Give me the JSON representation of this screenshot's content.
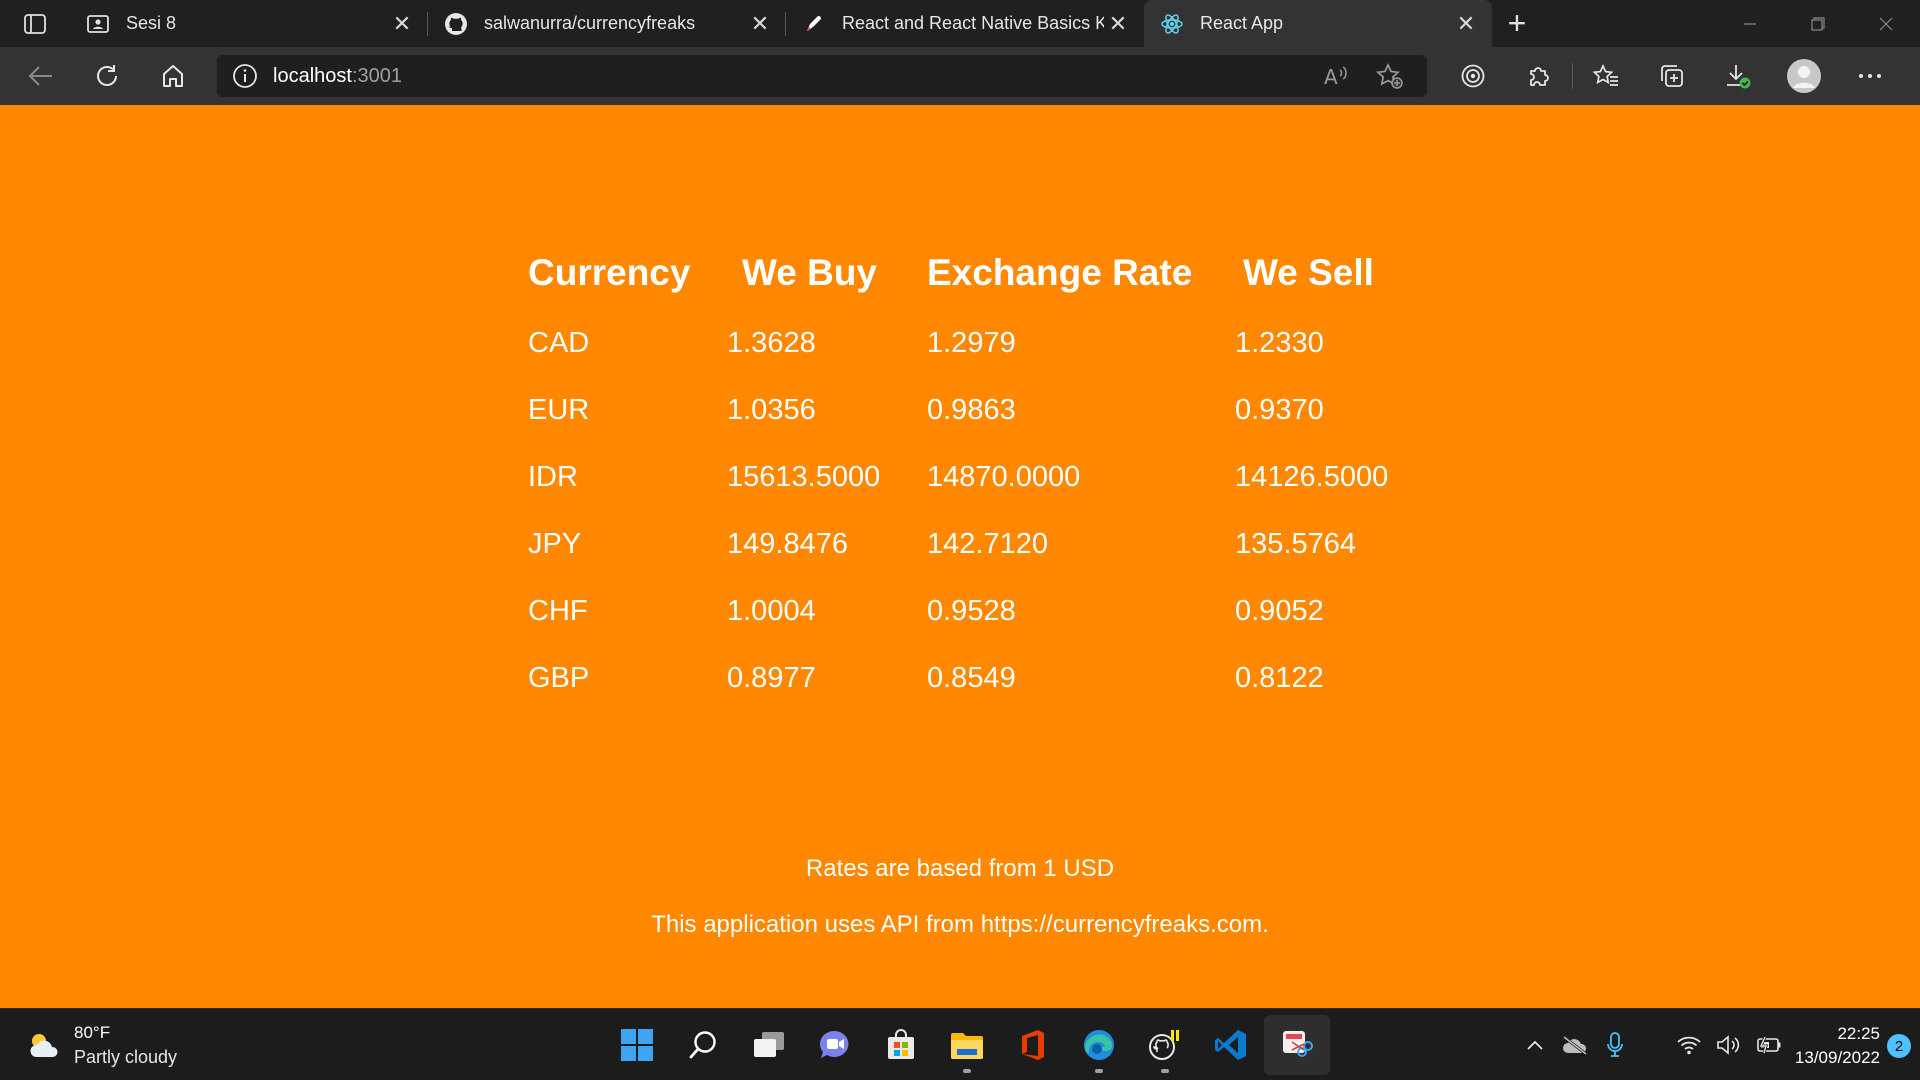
{
  "browser": {
    "tabs": [
      {
        "title": "Sesi 8",
        "icon": "profile-card-icon"
      },
      {
        "title": "salwanurra/currencyfreaks",
        "icon": "github-icon"
      },
      {
        "title": "React and React Native Basics Ka",
        "icon": "rocket-icon"
      },
      {
        "title": "React App",
        "icon": "react-icon",
        "active": true
      }
    ],
    "url_host": "localhost",
    "url_port": ":3001"
  },
  "page": {
    "headers": [
      "Currency",
      "We Buy",
      "Exchange Rate",
      "We Sell"
    ],
    "rows": [
      {
        "currency": "CAD",
        "buy": "1.3628",
        "rate": "1.2979",
        "sell": "1.2330"
      },
      {
        "currency": "EUR",
        "buy": "1.0356",
        "rate": "0.9863",
        "sell": "0.9370"
      },
      {
        "currency": "IDR",
        "buy": "15613.5000",
        "rate": "14870.0000",
        "sell": "14126.5000"
      },
      {
        "currency": "JPY",
        "buy": "149.8476",
        "rate": "142.7120",
        "sell": "135.5764"
      },
      {
        "currency": "CHF",
        "buy": "1.0004",
        "rate": "0.9528",
        "sell": "0.9052"
      },
      {
        "currency": "GBP",
        "buy": "0.8977",
        "rate": "0.8549",
        "sell": "0.8122"
      }
    ],
    "note": "Rates are based from 1 USD",
    "api_credit": "This application uses API from https://currencyfreaks.com.",
    "background_color": "#ff8800"
  },
  "taskbar": {
    "weather_temp": "80°F",
    "weather_condition": "Partly cloudy",
    "time": "22:25",
    "date": "13/09/2022",
    "notification_count": "2",
    "accent": "#4cc2ff"
  }
}
